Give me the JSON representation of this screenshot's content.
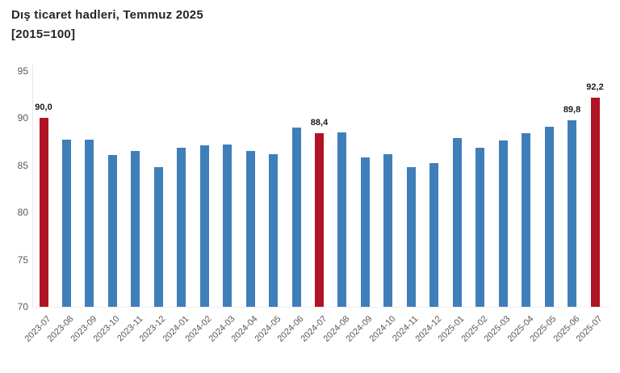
{
  "chart_data": {
    "type": "bar",
    "title": "Dış ticaret hadleri, Temmuz 2025",
    "subtitle": "[2015=100]",
    "xlabel": "",
    "ylabel": "",
    "ylim": [
      70,
      95
    ],
    "yticks": [
      70,
      75,
      80,
      85,
      90,
      95
    ],
    "grid": false,
    "legend_position": null,
    "categories": [
      "2023-07",
      "2023-08",
      "2023-09",
      "2023-10",
      "2023-11",
      "2023-12",
      "2024-01",
      "2024-02",
      "2024-03",
      "2024-04",
      "2024-05",
      "2024-06",
      "2024-07",
      "2024-08",
      "2024-09",
      "2024-10",
      "2024-11",
      "2024-12",
      "2025-01",
      "2025-02",
      "2025-03",
      "2025-04",
      "2025-05",
      "2025-06",
      "2025-07"
    ],
    "values": [
      90.0,
      87.7,
      87.7,
      86.1,
      86.5,
      84.8,
      86.9,
      87.1,
      87.2,
      86.5,
      86.2,
      89.0,
      88.4,
      88.5,
      85.8,
      86.2,
      84.8,
      85.2,
      87.9,
      86.9,
      87.6,
      88.4,
      89.1,
      89.8,
      92.2
    ],
    "highlighted_indices": [
      0,
      12,
      24
    ],
    "bar_labels": [
      {
        "index": 0,
        "text": "90,0"
      },
      {
        "index": 12,
        "text": "88,4"
      },
      {
        "index": 23,
        "text": "89,8"
      },
      {
        "index": 24,
        "text": "92,2"
      }
    ],
    "colors": {
      "bar": "#3f7fb9",
      "highlight": "#b01324",
      "axis_text": "#595959",
      "value_label_text": "#1a1a1a",
      "title_text": "#262626",
      "background": "#ffffff"
    }
  }
}
